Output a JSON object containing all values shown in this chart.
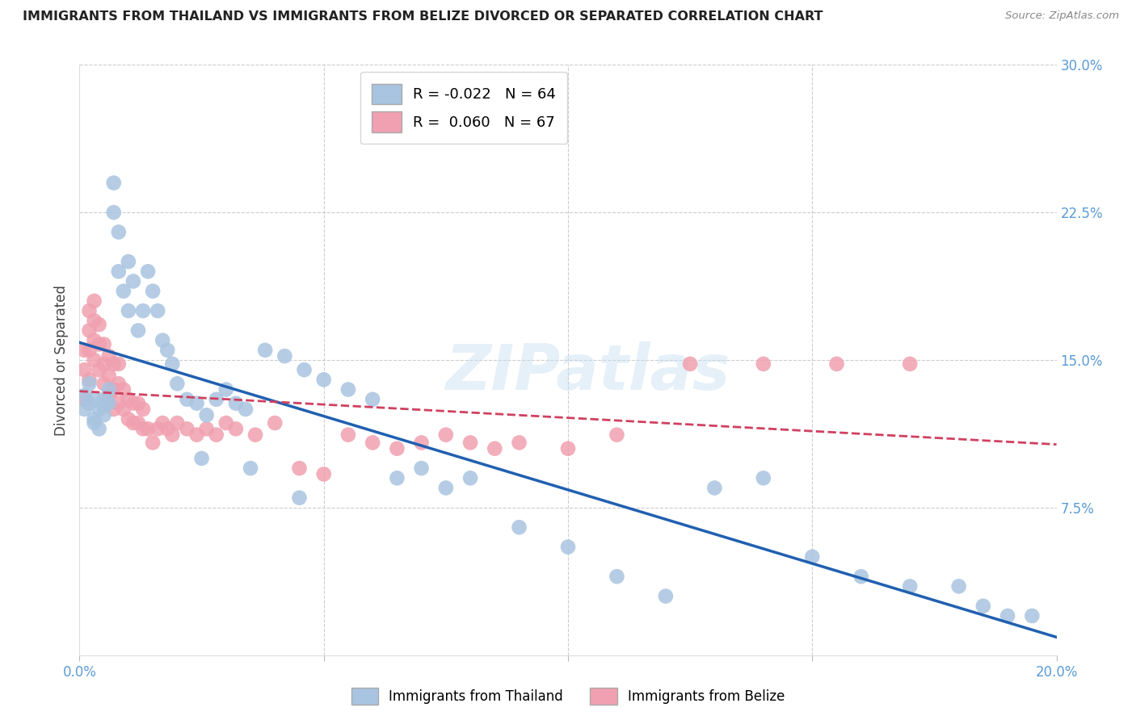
{
  "title": "IMMIGRANTS FROM THAILAND VS IMMIGRANTS FROM BELIZE DIVORCED OR SEPARATED CORRELATION CHART",
  "source": "Source: ZipAtlas.com",
  "ylabel": "Divorced or Separated",
  "xlim": [
    0.0,
    0.2
  ],
  "ylim": [
    0.0,
    0.3
  ],
  "legend_r_thailand": "-0.022",
  "legend_n_thailand": "64",
  "legend_r_belize": "0.060",
  "legend_n_belize": "67",
  "color_thailand": "#a8c4e0",
  "color_belize": "#f0a0b0",
  "line_color_thailand": "#2060b0",
  "line_color_belize": "#d04060",
  "watermark": "ZIPatlas",
  "thailand_x": [
    0.001,
    0.001,
    0.002,
    0.002,
    0.003,
    0.003,
    0.003,
    0.004,
    0.004,
    0.005,
    0.005,
    0.005,
    0.006,
    0.006,
    0.007,
    0.007,
    0.008,
    0.008,
    0.009,
    0.01,
    0.01,
    0.011,
    0.012,
    0.013,
    0.014,
    0.015,
    0.016,
    0.017,
    0.018,
    0.019,
    0.02,
    0.022,
    0.024,
    0.026,
    0.028,
    0.03,
    0.032,
    0.034,
    0.038,
    0.042,
    0.046,
    0.05,
    0.055,
    0.06,
    0.065,
    0.07,
    0.08,
    0.09,
    0.1,
    0.11,
    0.12,
    0.13,
    0.14,
    0.15,
    0.16,
    0.17,
    0.18,
    0.185,
    0.19,
    0.195,
    0.045,
    0.035,
    0.025,
    0.075
  ],
  "thailand_y": [
    0.125,
    0.132,
    0.128,
    0.138,
    0.13,
    0.12,
    0.118,
    0.125,
    0.115,
    0.13,
    0.122,
    0.127,
    0.135,
    0.128,
    0.24,
    0.225,
    0.215,
    0.195,
    0.185,
    0.175,
    0.2,
    0.19,
    0.165,
    0.175,
    0.195,
    0.185,
    0.175,
    0.16,
    0.155,
    0.148,
    0.138,
    0.13,
    0.128,
    0.122,
    0.13,
    0.135,
    0.128,
    0.125,
    0.155,
    0.152,
    0.145,
    0.14,
    0.135,
    0.13,
    0.09,
    0.095,
    0.09,
    0.065,
    0.055,
    0.04,
    0.03,
    0.085,
    0.09,
    0.05,
    0.04,
    0.035,
    0.035,
    0.025,
    0.02,
    0.02,
    0.08,
    0.095,
    0.1,
    0.085
  ],
  "belize_x": [
    0.001,
    0.001,
    0.001,
    0.002,
    0.002,
    0.002,
    0.002,
    0.003,
    0.003,
    0.003,
    0.003,
    0.004,
    0.004,
    0.004,
    0.005,
    0.005,
    0.005,
    0.006,
    0.006,
    0.006,
    0.007,
    0.007,
    0.007,
    0.008,
    0.008,
    0.008,
    0.009,
    0.009,
    0.01,
    0.01,
    0.011,
    0.011,
    0.012,
    0.012,
    0.013,
    0.013,
    0.014,
    0.015,
    0.016,
    0.017,
    0.018,
    0.019,
    0.02,
    0.022,
    0.024,
    0.026,
    0.028,
    0.03,
    0.032,
    0.036,
    0.04,
    0.045,
    0.05,
    0.055,
    0.06,
    0.065,
    0.07,
    0.075,
    0.08,
    0.085,
    0.09,
    0.1,
    0.11,
    0.125,
    0.14,
    0.155,
    0.17
  ],
  "belize_y": [
    0.13,
    0.145,
    0.155,
    0.14,
    0.155,
    0.165,
    0.175,
    0.15,
    0.16,
    0.17,
    0.18,
    0.145,
    0.158,
    0.168,
    0.138,
    0.148,
    0.158,
    0.132,
    0.142,
    0.152,
    0.125,
    0.135,
    0.148,
    0.128,
    0.138,
    0.148,
    0.125,
    0.135,
    0.12,
    0.13,
    0.118,
    0.128,
    0.118,
    0.128,
    0.115,
    0.125,
    0.115,
    0.108,
    0.115,
    0.118,
    0.115,
    0.112,
    0.118,
    0.115,
    0.112,
    0.115,
    0.112,
    0.118,
    0.115,
    0.112,
    0.118,
    0.095,
    0.092,
    0.112,
    0.108,
    0.105,
    0.108,
    0.112,
    0.108,
    0.105,
    0.108,
    0.105,
    0.112,
    0.148,
    0.148,
    0.148,
    0.148
  ]
}
